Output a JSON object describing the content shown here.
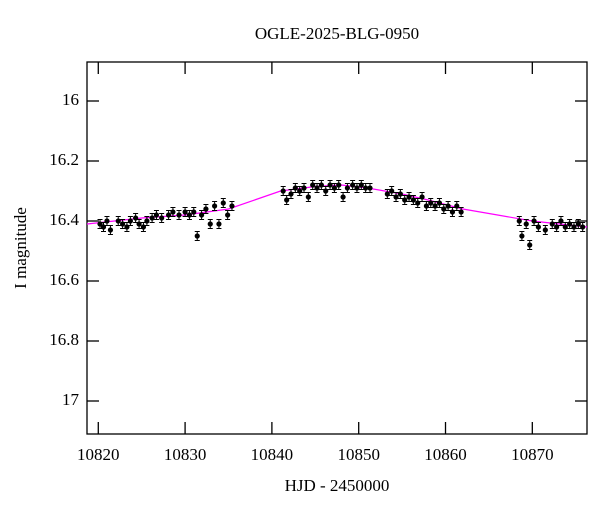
{
  "chart_data": {
    "type": "scatter",
    "title": "OGLE-2025-BLG-0950",
    "x_label": "HJD - 2450000",
    "y_label": "I magnitude",
    "xlim": [
      10818.7,
      10876.3
    ],
    "ylim": [
      15.87,
      17.11
    ],
    "y_inverted": true,
    "xticks": [
      10820,
      10830,
      10840,
      10850,
      10860,
      10870
    ],
    "yticks": [
      16,
      16.2,
      16.4,
      16.6,
      16.8,
      17
    ],
    "series": [
      {
        "color": "#000000",
        "error": 0.015,
        "x": [
          10820.2,
          10820.6,
          10821.0,
          10821.4,
          10822.3,
          10822.8,
          10823.3,
          10823.7,
          10824.3,
          10824.7,
          10825.2,
          10825.6,
          10826.2,
          10826.7,
          10827.3,
          10828.1,
          10828.6,
          10829.3,
          10830.0,
          10830.5,
          10831.0,
          10831.4,
          10831.9,
          10832.4,
          10832.9,
          10833.4,
          10833.9,
          10834.4,
          10834.9,
          10835.4,
          10841.3,
          10841.7,
          10842.2,
          10842.7,
          10843.2,
          10843.7,
          10844.2,
          10844.7,
          10845.2,
          10845.7,
          10846.2,
          10846.7,
          10847.2,
          10847.7,
          10848.2,
          10848.7,
          10849.3,
          10849.8,
          10850.3,
          10850.8,
          10851.3,
          10853.3,
          10853.8,
          10854.3,
          10854.8,
          10855.3,
          10855.8,
          10856.3,
          10856.8,
          10857.3,
          10857.8,
          10858.3,
          10858.8,
          10859.3,
          10859.8,
          10860.3,
          10860.8,
          10861.3,
          10861.8,
          10868.5,
          10868.8,
          10869.3,
          10869.7,
          10870.2,
          10870.7,
          10871.5,
          10872.3,
          10872.8,
          10873.3,
          10873.8,
          10874.3,
          10874.8,
          10875.3,
          10875.8
        ],
        "values": [
          16.41,
          16.42,
          16.4,
          16.43,
          16.4,
          16.41,
          16.42,
          16.4,
          16.39,
          16.41,
          16.42,
          16.4,
          16.39,
          16.38,
          16.39,
          16.38,
          16.37,
          16.38,
          16.37,
          16.38,
          16.37,
          16.45,
          16.38,
          16.36,
          16.41,
          16.35,
          16.41,
          16.34,
          16.38,
          16.35,
          16.3,
          16.33,
          16.31,
          16.29,
          16.3,
          16.29,
          16.32,
          16.28,
          16.29,
          16.28,
          16.3,
          16.28,
          16.29,
          16.28,
          16.32,
          16.29,
          16.28,
          16.29,
          16.28,
          16.29,
          16.29,
          16.31,
          16.3,
          16.32,
          16.31,
          16.33,
          16.32,
          16.33,
          16.34,
          16.32,
          16.35,
          16.34,
          16.35,
          16.34,
          16.36,
          16.35,
          16.37,
          16.35,
          16.37,
          16.4,
          16.45,
          16.41,
          16.48,
          16.4,
          16.42,
          16.43,
          16.41,
          16.42,
          16.4,
          16.42,
          16.41,
          16.42,
          16.41,
          16.42
        ]
      },
      {
        "type": "line",
        "color": "#ff00ff",
        "x": [
          10818.7,
          10825,
          10830,
          10835,
          10841,
          10845,
          10848,
          10851,
          10855,
          10858,
          10862,
          10866,
          10870,
          10876.3
        ],
        "values": [
          16.41,
          16.39,
          16.38,
          16.36,
          16.3,
          16.285,
          16.28,
          16.29,
          16.31,
          16.33,
          16.36,
          16.38,
          16.4,
          16.42
        ]
      }
    ]
  }
}
